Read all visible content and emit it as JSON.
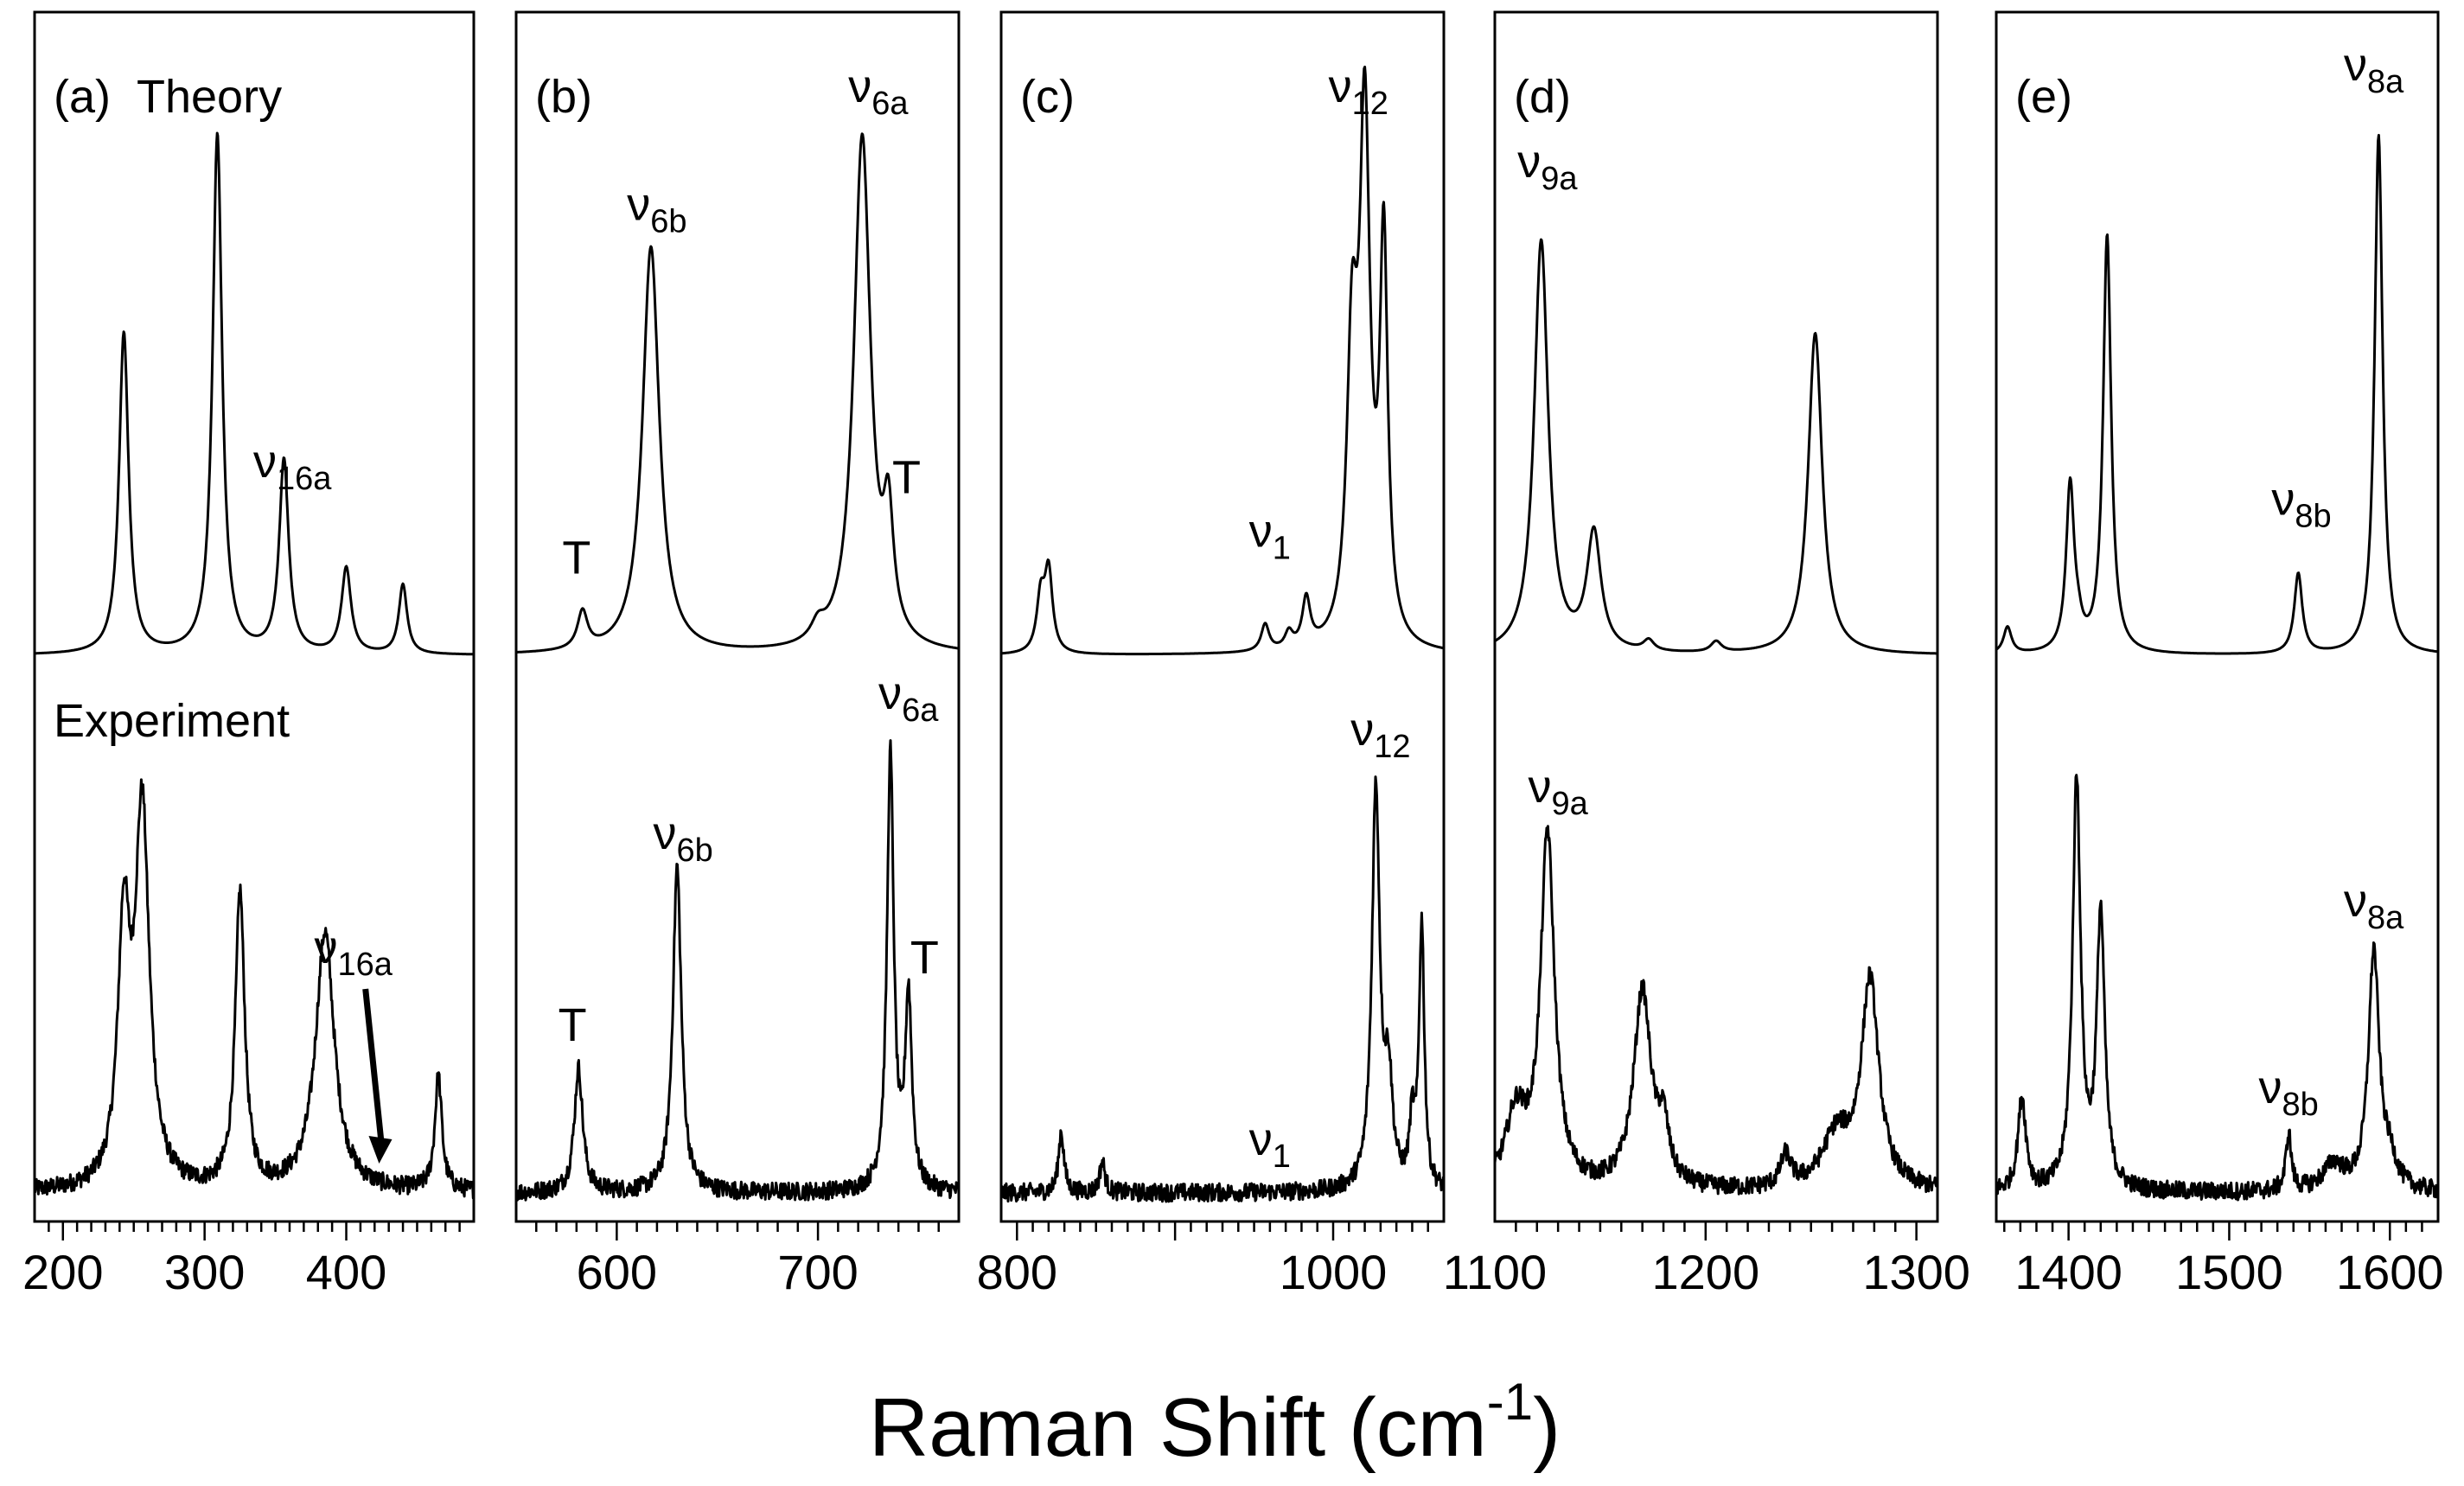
{
  "chart_data": {
    "type": "line",
    "xlabel": "Raman Shift (cm-1)",
    "xlabel_base": "Raman Shift (cm",
    "xlabel_sup": "-1",
    "xlabel_close": ")",
    "row_labels": {
      "top": "Theory",
      "bottom": "Experiment"
    },
    "panels": [
      {
        "id": "a",
        "label": "(a)",
        "xlim": [
          180,
          490
        ],
        "ticks": [
          200,
          300,
          400
        ],
        "theory_peaks": [
          {
            "x": 243,
            "h": 0.6,
            "w": 4
          },
          {
            "x": 309,
            "h": 0.97,
            "w": 4
          },
          {
            "x": 356,
            "h": 0.36,
            "w": 4
          },
          {
            "x": 400,
            "h": 0.16,
            "w": 4
          },
          {
            "x": 440,
            "h": 0.13,
            "w": 3.5
          }
        ],
        "exp_peaks": [
          {
            "x": 243,
            "h": 0.48,
            "w": 5
          },
          {
            "x": 256,
            "h": 0.72,
            "w": 6
          },
          {
            "x": 325,
            "h": 0.57,
            "w": 4
          },
          {
            "x": 385,
            "h": 0.5,
            "w": 8
          },
          {
            "x": 465,
            "h": 0.22,
            "w": 3
          }
        ],
        "labels": [
          {
            "row": "theory",
            "x": 362,
            "y": 0.3,
            "base": "ν",
            "sub": "16a"
          },
          {
            "row": "exp",
            "x": 405,
            "y": 0.44,
            "base": "ν",
            "sub": "16a",
            "arrow_to": [
              425,
              0.09
            ]
          }
        ]
      },
      {
        "id": "b",
        "label": "(b)",
        "xlim": [
          550,
          770
        ],
        "ticks": [
          600,
          700
        ],
        "theory_peaks": [
          {
            "x": 583,
            "h": 0.07,
            "w": 3
          },
          {
            "x": 617,
            "h": 0.76,
            "w": 5
          },
          {
            "x": 700,
            "h": 0.03,
            "w": 4
          },
          {
            "x": 722,
            "h": 0.96,
            "w": 5
          },
          {
            "x": 735,
            "h": 0.21,
            "w": 3
          }
        ],
        "exp_peaks": [
          {
            "x": 581,
            "h": 0.24,
            "w": 2.5
          },
          {
            "x": 630,
            "h": 0.63,
            "w": 2.5
          },
          {
            "x": 736,
            "h": 0.84,
            "w": 2
          },
          {
            "x": 745,
            "h": 0.37,
            "w": 2
          }
        ],
        "labels": [
          {
            "row": "theory",
            "x": 620,
            "y": 0.78,
            "base": "ν",
            "sub": "6b"
          },
          {
            "row": "theory",
            "x": 730,
            "y": 1.0,
            "base": "ν",
            "sub": "6a"
          },
          {
            "row": "theory",
            "x": 580,
            "y": 0.12,
            "base": "T",
            "sub": ""
          },
          {
            "row": "theory",
            "x": 744,
            "y": 0.27,
            "base": "T",
            "sub": ""
          },
          {
            "row": "exp",
            "x": 633,
            "y": 0.66,
            "base": "ν",
            "sub": "6b"
          },
          {
            "row": "exp",
            "x": 745,
            "y": 0.93,
            "base": "ν",
            "sub": "6a"
          },
          {
            "row": "exp",
            "x": 578,
            "y": 0.29,
            "base": "T",
            "sub": ""
          },
          {
            "row": "exp",
            "x": 753,
            "y": 0.42,
            "base": "T",
            "sub": ""
          }
        ]
      },
      {
        "id": "c",
        "label": "(c)",
        "xlim": [
          790,
          1070
        ],
        "ticks": [
          800,
          1000
        ],
        "theory_peaks": [
          {
            "x": 815,
            "h": 0.1,
            "w": 3
          },
          {
            "x": 820,
            "h": 0.15,
            "w": 3
          },
          {
            "x": 957,
            "h": 0.05,
            "w": 3
          },
          {
            "x": 972,
            "h": 0.03,
            "w": 3
          },
          {
            "x": 983,
            "h": 0.09,
            "w": 3
          },
          {
            "x": 1012,
            "h": 0.52,
            "w": 4
          },
          {
            "x": 1020,
            "h": 0.95,
            "w": 4
          },
          {
            "x": 1032,
            "h": 0.73,
            "w": 3
          }
        ],
        "exp_peaks": [
          {
            "x": 828,
            "h": 0.12,
            "w": 2
          },
          {
            "x": 854,
            "h": 0.06,
            "w": 2
          },
          {
            "x": 1027,
            "h": 0.77,
            "w": 3
          },
          {
            "x": 1035,
            "h": 0.2,
            "w": 3
          },
          {
            "x": 1050,
            "h": 0.12,
            "w": 2
          },
          {
            "x": 1056,
            "h": 0.51,
            "w": 2
          }
        ],
        "labels": [
          {
            "row": "theory",
            "x": 1016,
            "y": 1.0,
            "base": "ν",
            "sub": "12"
          },
          {
            "row": "theory",
            "x": 960,
            "y": 0.17,
            "base": "ν",
            "sub": "1"
          },
          {
            "row": "exp",
            "x": 1030,
            "y": 0.86,
            "base": "ν",
            "sub": "12"
          },
          {
            "row": "exp",
            "x": 960,
            "y": 0.07,
            "base": "ν",
            "sub": "1"
          }
        ]
      },
      {
        "id": "d",
        "label": "(d)",
        "xlim": [
          1100,
          1310
        ],
        "ticks": [
          1100,
          1200,
          1300
        ],
        "theory_peaks": [
          {
            "x": 1122,
            "h": 0.77,
            "w": 4
          },
          {
            "x": 1147,
            "h": 0.22,
            "w": 4
          },
          {
            "x": 1173,
            "h": 0.02,
            "w": 3
          },
          {
            "x": 1205,
            "h": 0.02,
            "w": 3
          },
          {
            "x": 1252,
            "h": 0.6,
            "w": 4
          }
        ],
        "exp_peaks": [
          {
            "x": 1110,
            "h": 0.14,
            "w": 6
          },
          {
            "x": 1125,
            "h": 0.68,
            "w": 4
          },
          {
            "x": 1170,
            "h": 0.38,
            "w": 5
          },
          {
            "x": 1180,
            "h": 0.1,
            "w": 3
          },
          {
            "x": 1238,
            "h": 0.06,
            "w": 3
          },
          {
            "x": 1262,
            "h": 0.1,
            "w": 8
          },
          {
            "x": 1278,
            "h": 0.4,
            "w": 5
          }
        ],
        "labels": [
          {
            "row": "theory",
            "x": 1125,
            "y": 0.86,
            "base": "ν",
            "sub": "9a"
          },
          {
            "row": "exp",
            "x": 1130,
            "y": 0.75,
            "base": "ν",
            "sub": "9a"
          }
        ]
      },
      {
        "id": "e",
        "label": "(e)",
        "xlim": [
          1355,
          1630
        ],
        "ticks": [
          1400,
          1500,
          1600
        ],
        "theory_peaks": [
          {
            "x": 1362,
            "h": 0.05,
            "w": 3
          },
          {
            "x": 1401,
            "h": 0.31,
            "w": 3
          },
          {
            "x": 1406,
            "h": 0.03,
            "w": 3
          },
          {
            "x": 1424,
            "h": 0.78,
            "w": 3
          },
          {
            "x": 1543,
            "h": 0.15,
            "w": 3
          },
          {
            "x": 1593,
            "h": 0.97,
            "w": 3
          }
        ],
        "exp_peaks": [
          {
            "x": 1371,
            "h": 0.18,
            "w": 3
          },
          {
            "x": 1405,
            "h": 0.79,
            "w": 3
          },
          {
            "x": 1420,
            "h": 0.53,
            "w": 3
          },
          {
            "x": 1537,
            "h": 0.11,
            "w": 2
          },
          {
            "x": 1565,
            "h": 0.05,
            "w": 8
          },
          {
            "x": 1590,
            "h": 0.46,
            "w": 4
          },
          {
            "x": 1600,
            "h": 0.05,
            "w": 5
          }
        ],
        "labels": [
          {
            "row": "theory",
            "x": 1590,
            "y": 1.04,
            "base": "ν",
            "sub": "8a"
          },
          {
            "row": "theory",
            "x": 1545,
            "y": 0.23,
            "base": "ν",
            "sub": "8b"
          },
          {
            "row": "exp",
            "x": 1590,
            "y": 0.53,
            "base": "ν",
            "sub": "8a"
          },
          {
            "row": "exp",
            "x": 1537,
            "y": 0.17,
            "base": "ν",
            "sub": "8b"
          }
        ]
      }
    ]
  }
}
